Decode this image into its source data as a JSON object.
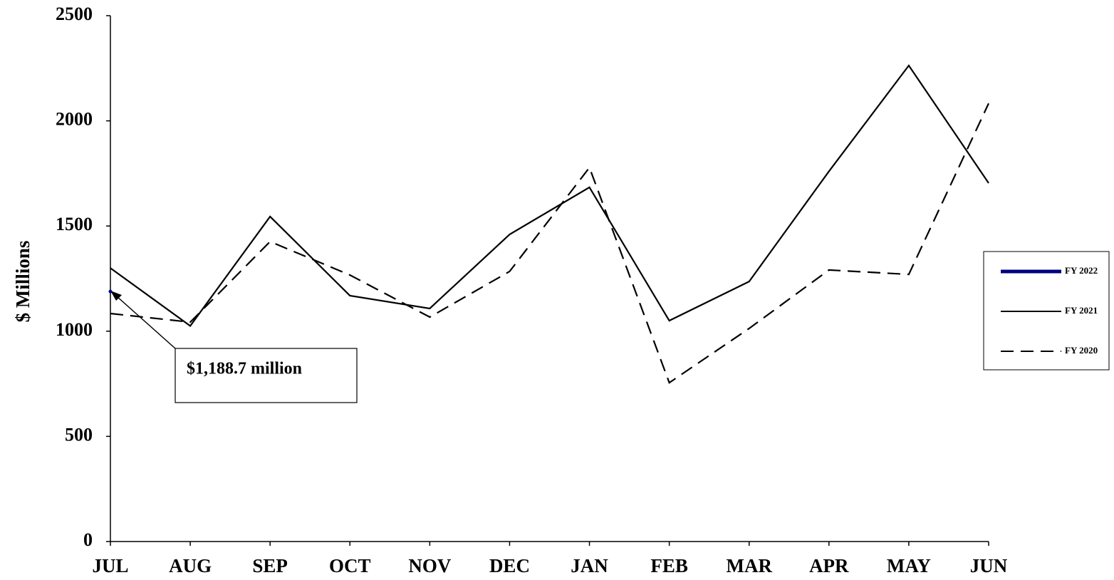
{
  "chart_data": {
    "type": "line",
    "y_label": "$ Millions",
    "categories": [
      "JUL",
      "AUG",
      "SEP",
      "OCT",
      "NOV",
      "DEC",
      "JAN",
      "FEB",
      "MAR",
      "APR",
      "MAY",
      "JUN"
    ],
    "series": [
      {
        "name": "FY 2022",
        "color": "#000080",
        "style": "solid",
        "values": [
          1188.7,
          null,
          null,
          null,
          null,
          null,
          null,
          null,
          null,
          null,
          null,
          null
        ]
      },
      {
        "name": "FY 2021",
        "color": "#000000",
        "style": "solid",
        "values": [
          1300,
          1025,
          1545,
          1169,
          1108,
          1460,
          1684,
          1050,
          1236,
          1760,
          2263,
          1704
        ]
      },
      {
        "name": "FY 2020",
        "color": "#000000",
        "style": "dashed",
        "values": [
          1084,
          1043,
          1426,
          1267,
          1067,
          1284,
          1778,
          755,
          1013,
          1291,
          1270,
          2083
        ]
      }
    ],
    "annotation": "$1,188.7 million",
    "ylim": [
      0,
      2500
    ],
    "yticks": [
      0,
      500,
      1000,
      1500,
      2000,
      2500
    ],
    "legend": "right",
    "grid": false
  }
}
